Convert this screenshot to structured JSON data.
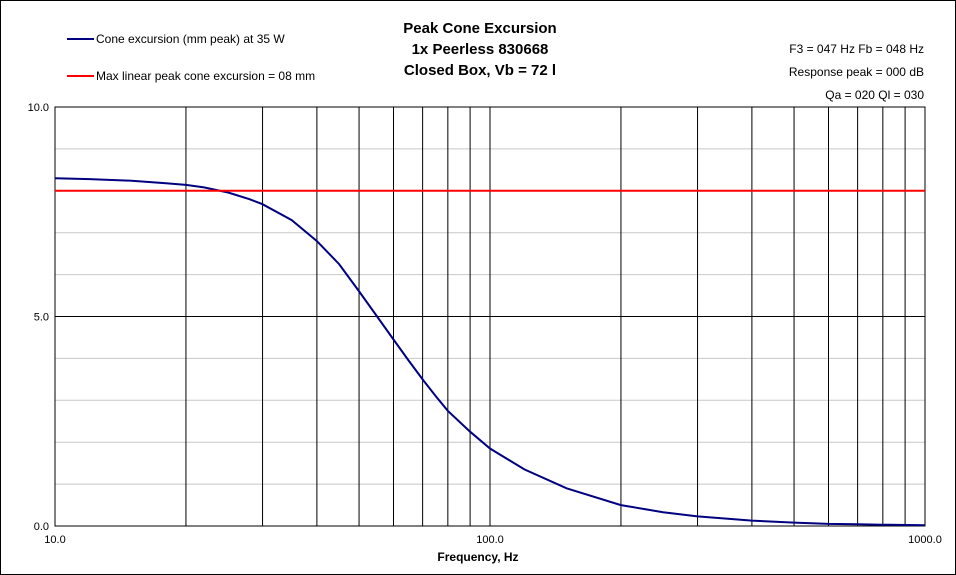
{
  "chart_data": {
    "type": "line",
    "title_lines": [
      "Peak Cone Excursion",
      "1x Peerless 830668",
      "Closed Box, Vb = 72 l"
    ],
    "xlabel": "Frequency, Hz",
    "ylabel": "",
    "x_scale": "log",
    "xlim": [
      10,
      1000
    ],
    "ylim": [
      0,
      10
    ],
    "x_tick_labels": [
      "10.0",
      "100.0",
      "1000.0"
    ],
    "x_tick_values": [
      10,
      100,
      1000
    ],
    "y_tick_labels": [
      "0.0",
      "5.0",
      "10.0"
    ],
    "y_tick_values": [
      0,
      5,
      10
    ],
    "grid": true,
    "legend_position": "top-left",
    "series": [
      {
        "name": "Cone excursion (mm peak) at 35 W",
        "color": "#000080",
        "x": [
          10,
          12,
          15,
          18,
          20,
          22,
          25,
          28,
          30,
          35,
          40,
          45,
          50,
          55,
          60,
          65,
          70,
          75,
          80,
          90,
          100,
          120,
          150,
          200,
          250,
          300,
          400,
          500,
          600,
          700,
          800,
          1000
        ],
        "y": [
          8.3,
          8.28,
          8.24,
          8.18,
          8.14,
          8.08,
          7.96,
          7.8,
          7.68,
          7.3,
          6.8,
          6.25,
          5.6,
          5.0,
          4.45,
          3.95,
          3.5,
          3.1,
          2.75,
          2.25,
          1.85,
          1.35,
          0.9,
          0.5,
          0.33,
          0.23,
          0.13,
          0.08,
          0.05,
          0.04,
          0.03,
          0.02
        ]
      },
      {
        "name": "Max linear peak cone excursion = 08 mm",
        "color": "#ff0000",
        "x": [
          10,
          1000
        ],
        "y": [
          8,
          8
        ]
      }
    ],
    "annotations": [
      "F3 = 047 Hz  Fb = 048 Hz",
      "Response peak = 000 dB",
      "Qa = 020  Ql = 030"
    ]
  }
}
